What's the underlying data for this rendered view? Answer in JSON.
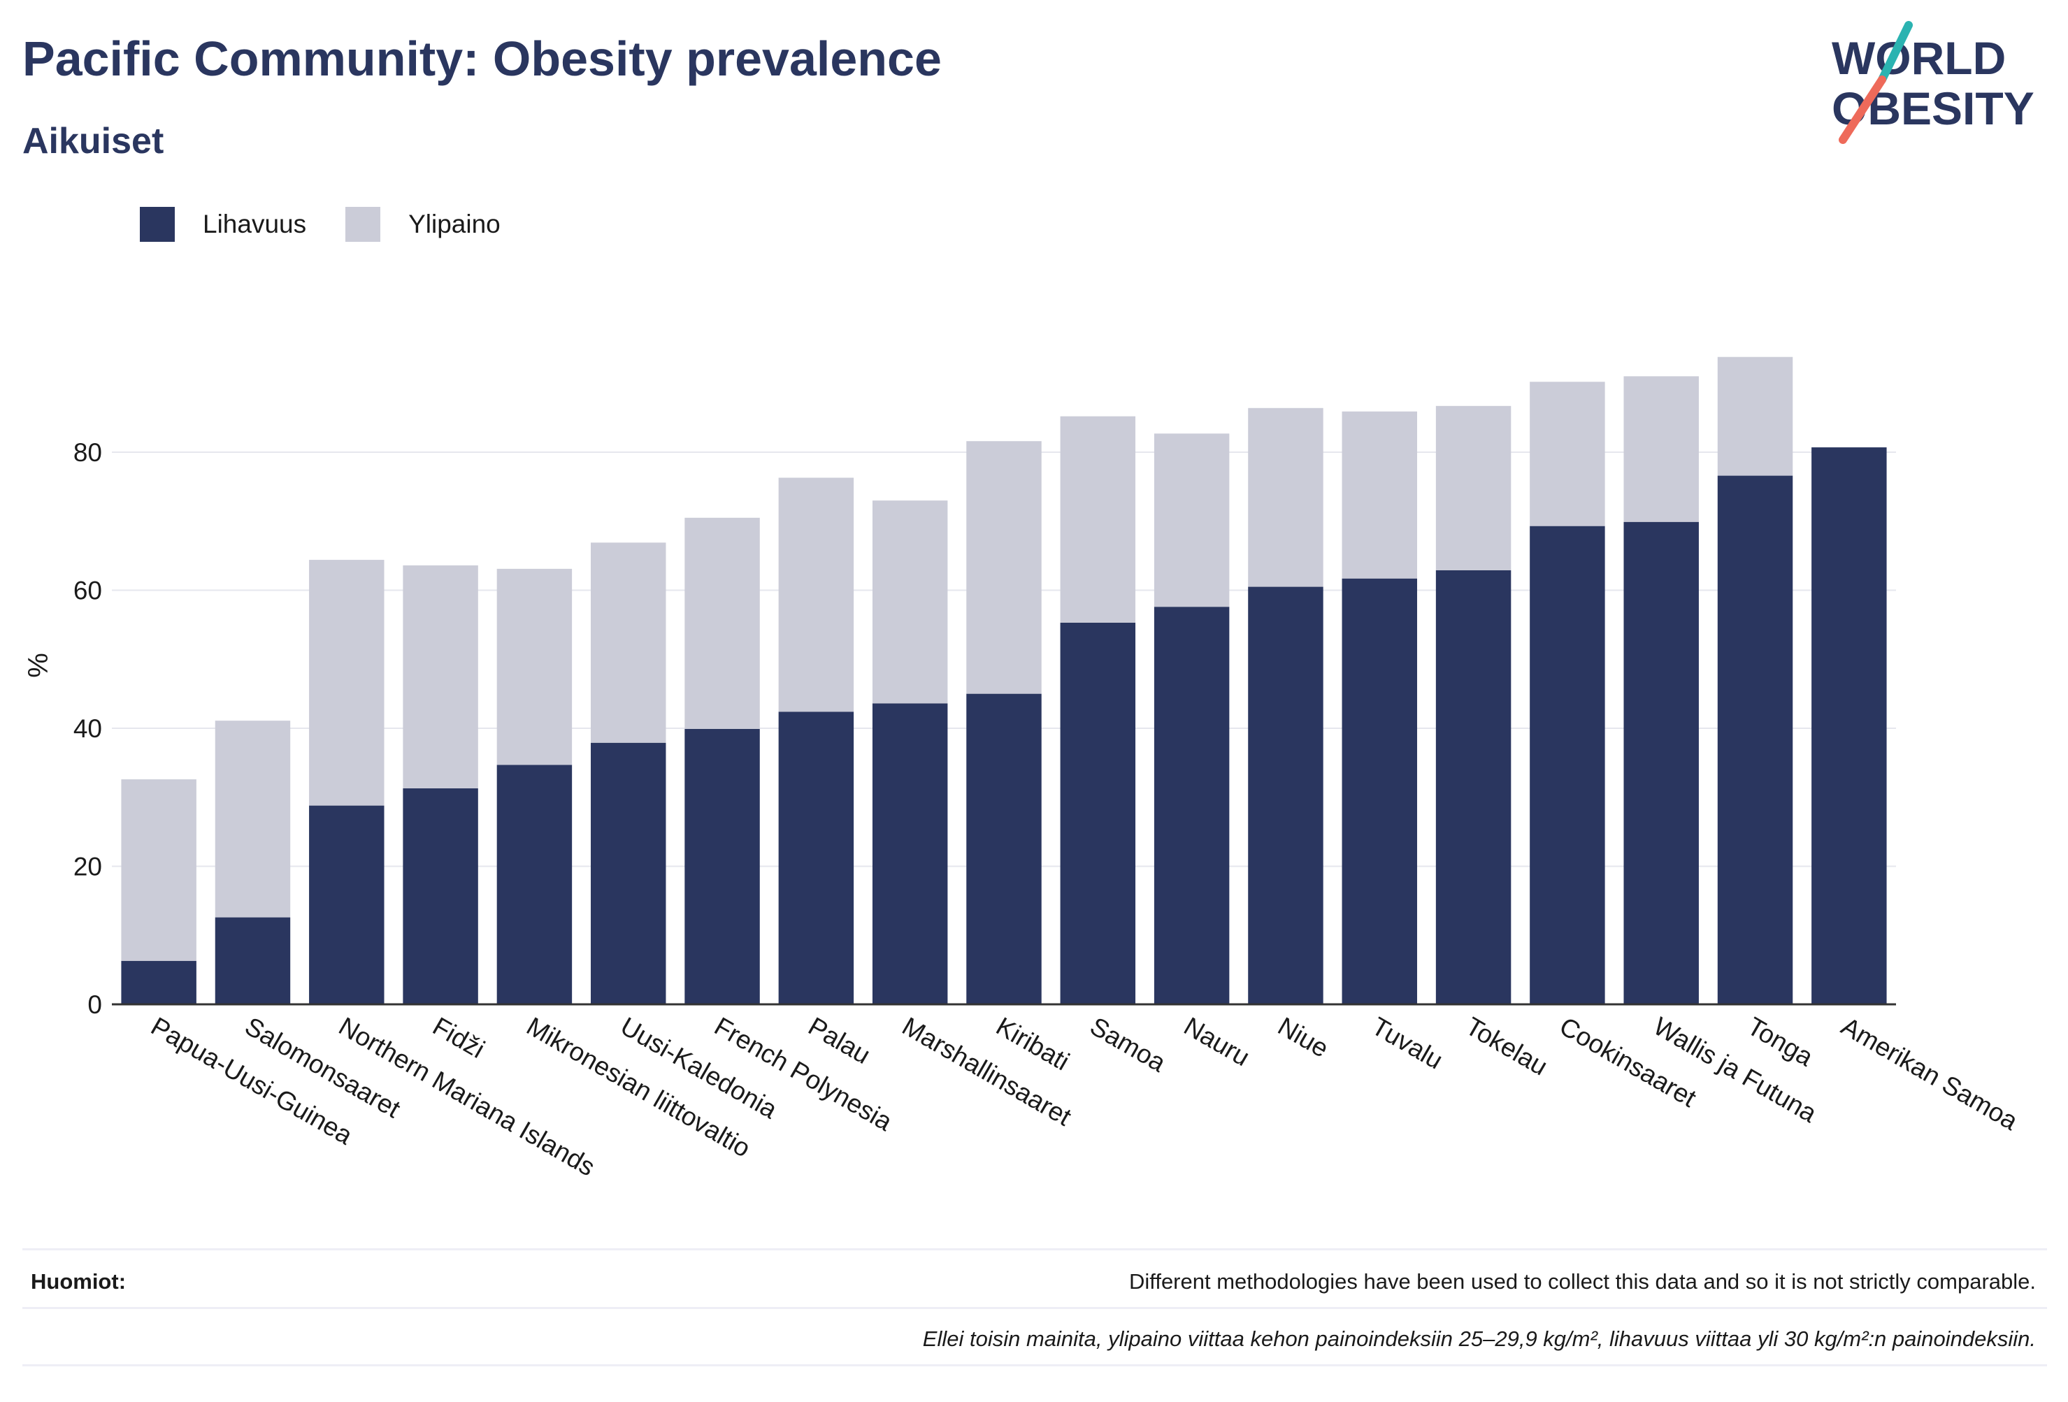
{
  "header": {
    "title": "Pacific Community: Obesity prevalence",
    "subtitle": "Aikuiset"
  },
  "logo": {
    "line1": "WORLD",
    "line2": "OBESITY"
  },
  "legend": [
    {
      "label": "Lihavuus",
      "color": "#2a365f"
    },
    {
      "label": "Ylipaino",
      "color": "#cbccd8"
    }
  ],
  "chart_data": {
    "type": "bar",
    "stacked": true,
    "ylabel": "%",
    "ylim": [
      0,
      100
    ],
    "yticks": [
      0,
      20,
      40,
      60,
      80
    ],
    "grid": true,
    "legend_position": "top-left",
    "categories": [
      "Papua-Uusi-Guinea",
      "Salomonsaaret",
      "Northern Mariana Islands",
      "Fidži",
      "Mikronesian liittovaltio",
      "Uusi-Kaledonia",
      "French Polynesia",
      "Palau",
      "Marshallinsaaret",
      "Kiribati",
      "Samoa",
      "Nauru",
      "Niue",
      "Tuvalu",
      "Tokelau",
      "Cookinsaaret",
      "Wallis ja Futuna",
      "Tonga",
      "Amerikan Samoa"
    ],
    "series": [
      {
        "name": "Lihavuus",
        "color": "#2a365f",
        "values": [
          6.3,
          12.6,
          28.8,
          31.3,
          34.7,
          37.9,
          39.9,
          42.4,
          43.6,
          45.0,
          55.3,
          57.6,
          60.5,
          61.7,
          62.9,
          69.3,
          69.9,
          76.6,
          80.7
        ]
      },
      {
        "name": "Ylipaino",
        "color": "#cbccd8",
        "values": [
          26.3,
          28.5,
          35.6,
          32.3,
          28.4,
          29.0,
          30.6,
          33.9,
          29.4,
          36.6,
          29.9,
          25.1,
          25.9,
          24.2,
          23.8,
          20.9,
          21.1,
          17.2,
          0
        ]
      }
    ]
  },
  "notes": {
    "label": "Huomiot:",
    "text": "Different methodologies have been used to collect this data and so it is not strictly comparable.",
    "footnote": "Ellei toisin mainita, ylipaino viittaa kehon painoindeksiin 25–29,9 kg/m², lihavuus viittaa yli 30 kg/m²:n painoindeksiin."
  }
}
